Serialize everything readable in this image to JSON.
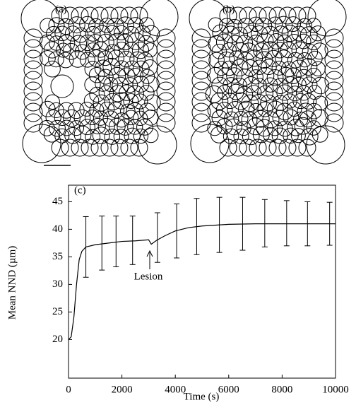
{
  "panels": {
    "a": "(a)",
    "b": "(b)"
  },
  "chart_data": {
    "type": "line",
    "panel_label": "(c)",
    "x_label": "Time (s)",
    "y_label": "Mean NND (µm)",
    "x": [
      0,
      100,
      200,
      300,
      400,
      500,
      650,
      1000,
      1500,
      2000,
      2500,
      3000,
      3100,
      3300,
      3600,
      4000,
      4500,
      5000,
      6000,
      7000,
      8000,
      9000,
      10000
    ],
    "values": [
      20,
      20.5,
      24,
      30,
      34.5,
      36,
      36.8,
      37.2,
      37.5,
      37.8,
      37.9,
      38.1,
      37.3,
      38,
      38.8,
      39.7,
      40.3,
      40.6,
      40.9,
      41,
      41,
      41,
      41
    ],
    "color": "#000000",
    "error_bars": {
      "x": [
        650,
        1250,
        1780,
        2400,
        3330,
        4050,
        4800,
        5650,
        6520,
        7350,
        8170,
        8950,
        9780
      ],
      "values": [
        36.8,
        37.5,
        37.8,
        38,
        38.5,
        39.7,
        40.5,
        40.8,
        41,
        41.1,
        41.1,
        41,
        41
      ],
      "errors": [
        5.5,
        4.9,
        4.6,
        4.4,
        4.5,
        4.9,
        5.1,
        5,
        4.8,
        4.3,
        4.1,
        4,
        3.9
      ]
    },
    "annotation": "Lesion",
    "xlim": [
      0,
      10000
    ],
    "xticks": [
      0,
      2000,
      4000,
      6000,
      8000,
      10000
    ],
    "ylim": [
      13,
      48
    ],
    "yticks": [
      20,
      25,
      30,
      35,
      40,
      45
    ]
  }
}
